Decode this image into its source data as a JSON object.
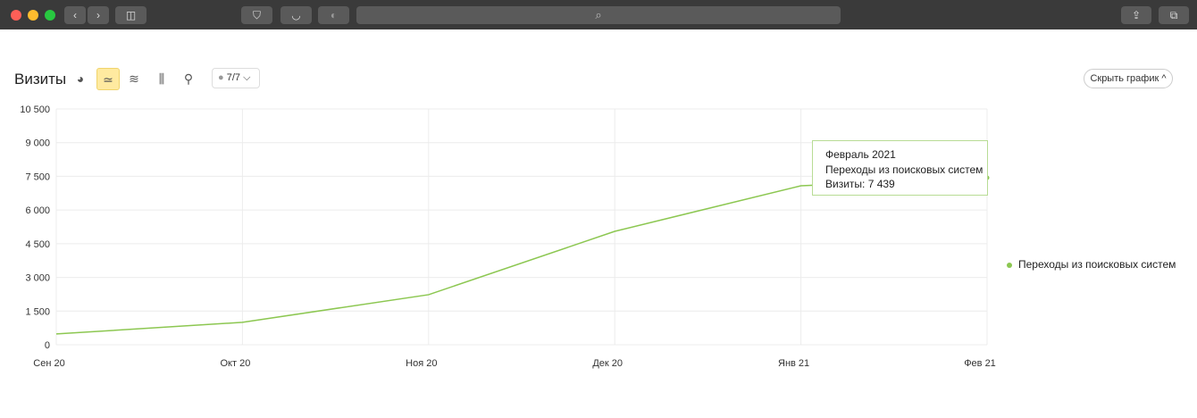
{
  "browser": {
    "icons": [
      "back-icon",
      "forward-icon",
      "sidebar-icon",
      "shield-icon",
      "pocket-icon",
      "privacy-icon",
      "search-icon",
      "share-icon",
      "tabs-icon"
    ]
  },
  "header": {
    "title": "Визиты",
    "segment_label": "7/7",
    "hide_button": "Скрыть график",
    "chart_types": [
      "pie-chart-icon",
      "line-chart-icon",
      "area-chart-icon",
      "bar-chart-icon",
      "map-icon"
    ],
    "active_type": "line-chart-icon"
  },
  "tooltip": {
    "title": "Февраль 2021",
    "series": "Переходы из поисковых систем",
    "value": "Визиты: 7 439"
  },
  "colors": {
    "series": "#8cc751",
    "active_button": "#ffeaa0"
  },
  "chart_data": {
    "type": "line",
    "categories": [
      "Сен 20",
      "Окт 20",
      "Ноя 20",
      "Дек 20",
      "Янв 21",
      "Фев 21"
    ],
    "yticks": [
      "0",
      "1 500",
      "3 000",
      "4 500",
      "6 000",
      "7 500",
      "9 000",
      "10 500"
    ],
    "ylim": [
      0,
      10500
    ],
    "grid": true,
    "legend_position": "right",
    "series": [
      {
        "name": "Переходы из поисковых систем",
        "values": [
          480,
          1000,
          2230,
          5050,
          7080,
          7439
        ]
      }
    ]
  }
}
